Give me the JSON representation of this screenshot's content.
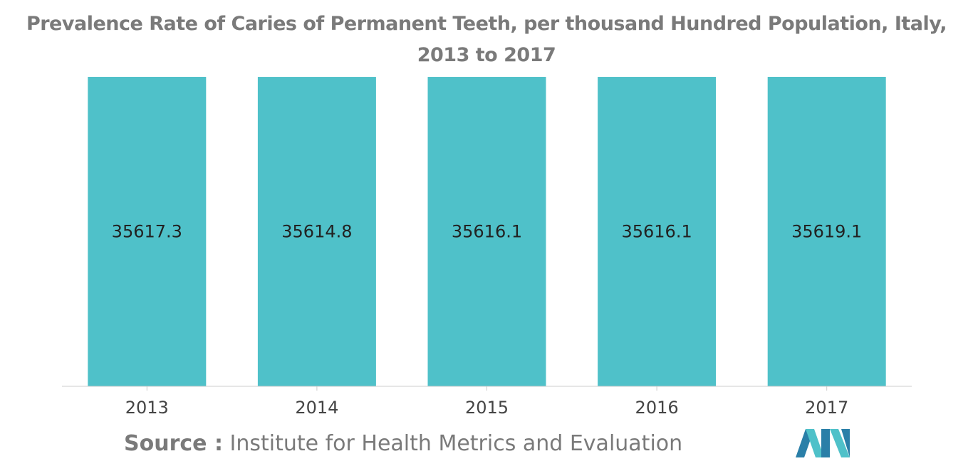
{
  "chart_data": {
    "type": "bar",
    "title": "Prevalence Rate of Caries of Permanent Teeth, per thousand Hundred Population, Italy,",
    "title_line2": "2013 to 2017",
    "categories": [
      "2013",
      "2014",
      "2015",
      "2016",
      "2017"
    ],
    "values": [
      35617.3,
      35614.8,
      35616.1,
      35616.1,
      35619.1
    ],
    "value_labels": [
      "35617.3",
      "35614.8",
      "35616.1",
      "35616.1",
      "35619.1"
    ],
    "xlabel": "",
    "ylabel": "",
    "ylim": [
      0,
      35619.1
    ],
    "grid": false,
    "legend": "none",
    "bar_color": "#4fc1c9"
  },
  "footer": {
    "source_label": "Source :",
    "source_text": " Institute for Health Metrics and Evaluation"
  },
  "logo": {
    "icon": "mordor-intelligence-logo",
    "colors": [
      "#2a7fa8",
      "#4fc1c9"
    ]
  }
}
